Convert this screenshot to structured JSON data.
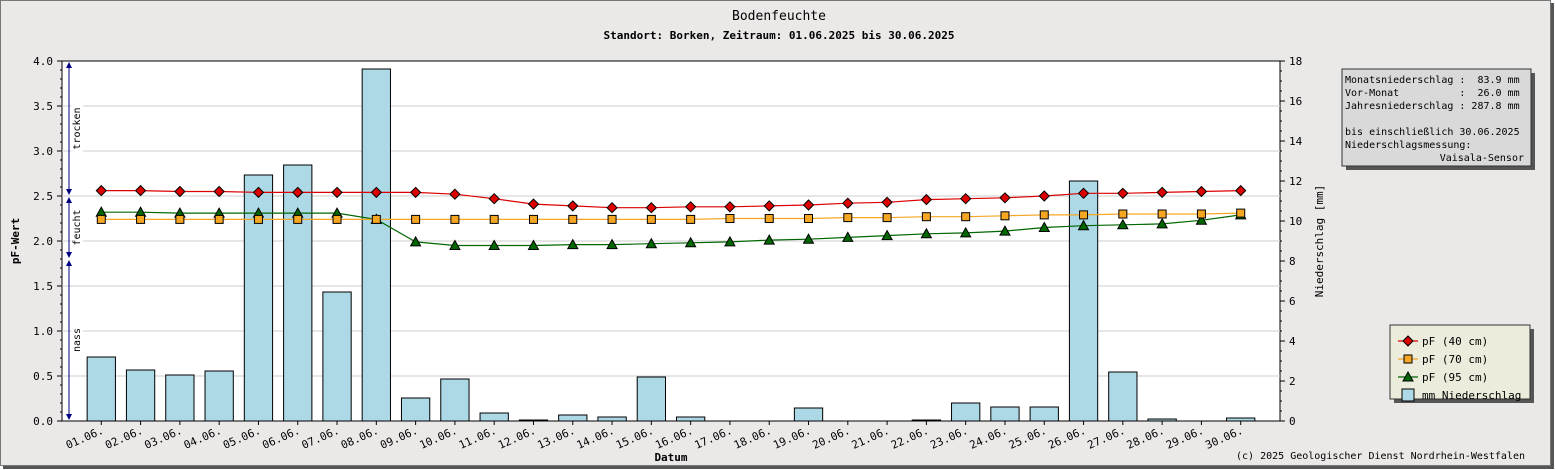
{
  "chart_data": {
    "type": "bar",
    "title": "Bodenfeuchte",
    "subtitle": "Standort: Borken, Zeitraum: 01.06.2025 bis 30.06.2025",
    "xlabel": "Datum",
    "ylabel_left": "pF-Wert",
    "ylabel_right": "Niederschlag [mm]",
    "ylim_left": [
      0,
      4.0
    ],
    "yticks_left": [
      "0.0",
      "0.5",
      "1.0",
      "1.5",
      "2.0",
      "2.5",
      "3.0",
      "3.5",
      "4.0"
    ],
    "ylim_right": [
      0,
      18
    ],
    "yticks_right": [
      "0",
      "2",
      "4",
      "6",
      "8",
      "10",
      "12",
      "14",
      "16",
      "18"
    ],
    "grid": true,
    "legend_position": "bottom-right",
    "categories": [
      "01.06.",
      "02.06.",
      "03.06.",
      "04.06.",
      "05.06.",
      "06.06.",
      "07.06.",
      "08.06.",
      "09.06.",
      "10.06.",
      "11.06.",
      "12.06.",
      "13.06.",
      "14.06.",
      "15.06.",
      "16.06.",
      "17.06.",
      "18.06.",
      "19.06.",
      "20.06.",
      "21.06.",
      "22.06.",
      "23.06.",
      "24.06.",
      "25.06.",
      "26.06.",
      "27.06.",
      "28.06.",
      "29.06.",
      "30.06."
    ],
    "series": [
      {
        "name": "pF (40 cm)",
        "kind": "line",
        "axis": "left",
        "color": "#dd0000",
        "marker": "diamond",
        "values": [
          2.56,
          2.56,
          2.55,
          2.55,
          2.54,
          2.54,
          2.54,
          2.54,
          2.54,
          2.52,
          2.47,
          2.41,
          2.39,
          2.37,
          2.37,
          2.38,
          2.38,
          2.39,
          2.4,
          2.42,
          2.43,
          2.46,
          2.47,
          2.48,
          2.5,
          2.53,
          2.53,
          2.54,
          2.55,
          2.56
        ]
      },
      {
        "name": "pF (70 cm)",
        "kind": "line",
        "axis": "left",
        "color": "#f5a623",
        "marker": "square",
        "values": [
          2.24,
          2.24,
          2.24,
          2.24,
          2.24,
          2.24,
          2.24,
          2.24,
          2.24,
          2.24,
          2.24,
          2.24,
          2.24,
          2.24,
          2.24,
          2.24,
          2.25,
          2.25,
          2.25,
          2.26,
          2.26,
          2.27,
          2.27,
          2.28,
          2.29,
          2.29,
          2.3,
          2.3,
          2.3,
          2.31
        ]
      },
      {
        "name": "pF (95 cm)",
        "kind": "line",
        "axis": "left",
        "color": "#006600",
        "marker": "triangle",
        "values": [
          2.32,
          2.32,
          2.31,
          2.31,
          2.31,
          2.31,
          2.31,
          2.24,
          1.99,
          1.95,
          1.95,
          1.95,
          1.96,
          1.96,
          1.97,
          1.98,
          1.99,
          2.01,
          2.02,
          2.04,
          2.06,
          2.08,
          2.09,
          2.11,
          2.15,
          2.17,
          2.18,
          2.19,
          2.23,
          2.29
        ]
      },
      {
        "name": "mm  Niederschlag",
        "kind": "bar",
        "axis": "right",
        "color": "#add8e6",
        "values": [
          3.2,
          2.55,
          2.3,
          2.5,
          12.3,
          12.8,
          6.45,
          17.6,
          1.15,
          2.1,
          0.4,
          0.05,
          0.3,
          0.2,
          2.2,
          0.2,
          0,
          0,
          0.65,
          0,
          0,
          0.05,
          0.9,
          0.7,
          0.7,
          12.0,
          2.45,
          0.1,
          0,
          0.15
        ]
      }
    ],
    "zones": [
      {
        "label": "trocken",
        "from": 2.5,
        "to": 4.0
      },
      {
        "label": "feucht",
        "from": 1.8,
        "to": 2.5
      },
      {
        "label": "nass",
        "from": 0.0,
        "to": 1.8
      }
    ],
    "info_box": [
      "Monatsniederschlag :  83.9 mm",
      "Vor-Monat          :  26.0 mm",
      "Jahresniederschlag : 287.8 mm",
      "",
      "bis einschließlich 30.06.2025",
      "Niederschlagsmessung:",
      "Vaisala-Sensor"
    ],
    "copyright": "(c) 2025 Geologischer Dienst Nordrhein-Westfalen"
  }
}
